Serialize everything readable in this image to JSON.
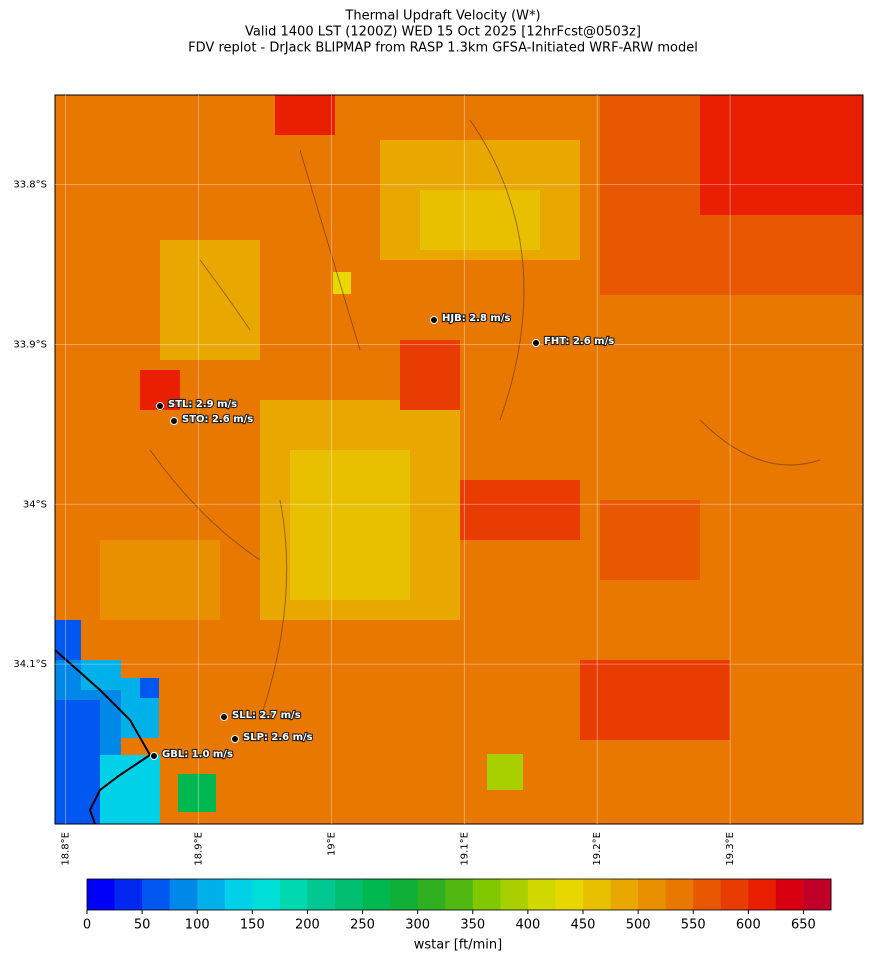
{
  "header": {
    "title": [
      "Thermal Updraft Velocity (W*)",
      "Valid 1400 LST (1200Z) WED 15 Oct 2025 [12hrFcst@0503z]",
      "FDV replot - DrJack BLIPMAP from RASP 1.3km GFSA-Initiated WRF-ARW model"
    ]
  },
  "map": {
    "lonlim": [
      18.792,
      19.4
    ],
    "latlim": [
      -34.2,
      -33.744
    ],
    "lon_ticks": [
      {
        "value": 18.8,
        "label": "18.8°E"
      },
      {
        "value": 18.9,
        "label": "18.9°E"
      },
      {
        "value": 19.0,
        "label": "19°E"
      },
      {
        "value": 19.1,
        "label": "19.1°E"
      },
      {
        "value": 19.2,
        "label": "19.2°E"
      },
      {
        "value": 19.3,
        "label": "19.3°E"
      }
    ],
    "lat_ticks": [
      {
        "value": -33.8,
        "label": "33.8°S"
      },
      {
        "value": -33.9,
        "label": "33.9°S"
      },
      {
        "value": -34.0,
        "label": "34°S"
      },
      {
        "value": -34.1,
        "label": "34.1°S"
      }
    ],
    "grid": true,
    "stations": [
      {
        "label": "HJB: 2.8 m/s"
      },
      {
        "label": "FHT: 2.6 m/s"
      },
      {
        "label": "STL: 2.9 m/s"
      },
      {
        "label": "STO: 2.6 m/s"
      },
      {
        "label": "SLL: 2.7 m/s"
      },
      {
        "label": "SLP: 2.6 m/s"
      },
      {
        "label": "GBL: 1.0 m/s"
      }
    ]
  },
  "colorbar": {
    "label": "wstar [ft/min]",
    "lim": [
      0,
      675
    ],
    "ticks": [
      0,
      50,
      100,
      150,
      200,
      250,
      300,
      350,
      400,
      450,
      500,
      550,
      600,
      650
    ],
    "colors": [
      "#0000f8",
      "#0028f0",
      "#0058f0",
      "#0088e8",
      "#00b0e8",
      "#00d0e8",
      "#00e0d8",
      "#00d8b0",
      "#00c890",
      "#00c070",
      "#00b850",
      "#10b038",
      "#30b020",
      "#50b810",
      "#80c800",
      "#a8d000",
      "#d0d800",
      "#e8d800",
      "#e8c000",
      "#e8a800",
      "#e89000",
      "#e87800",
      "#e85800",
      "#e83c00",
      "#e82000",
      "#d80010",
      "#c00028"
    ]
  }
}
